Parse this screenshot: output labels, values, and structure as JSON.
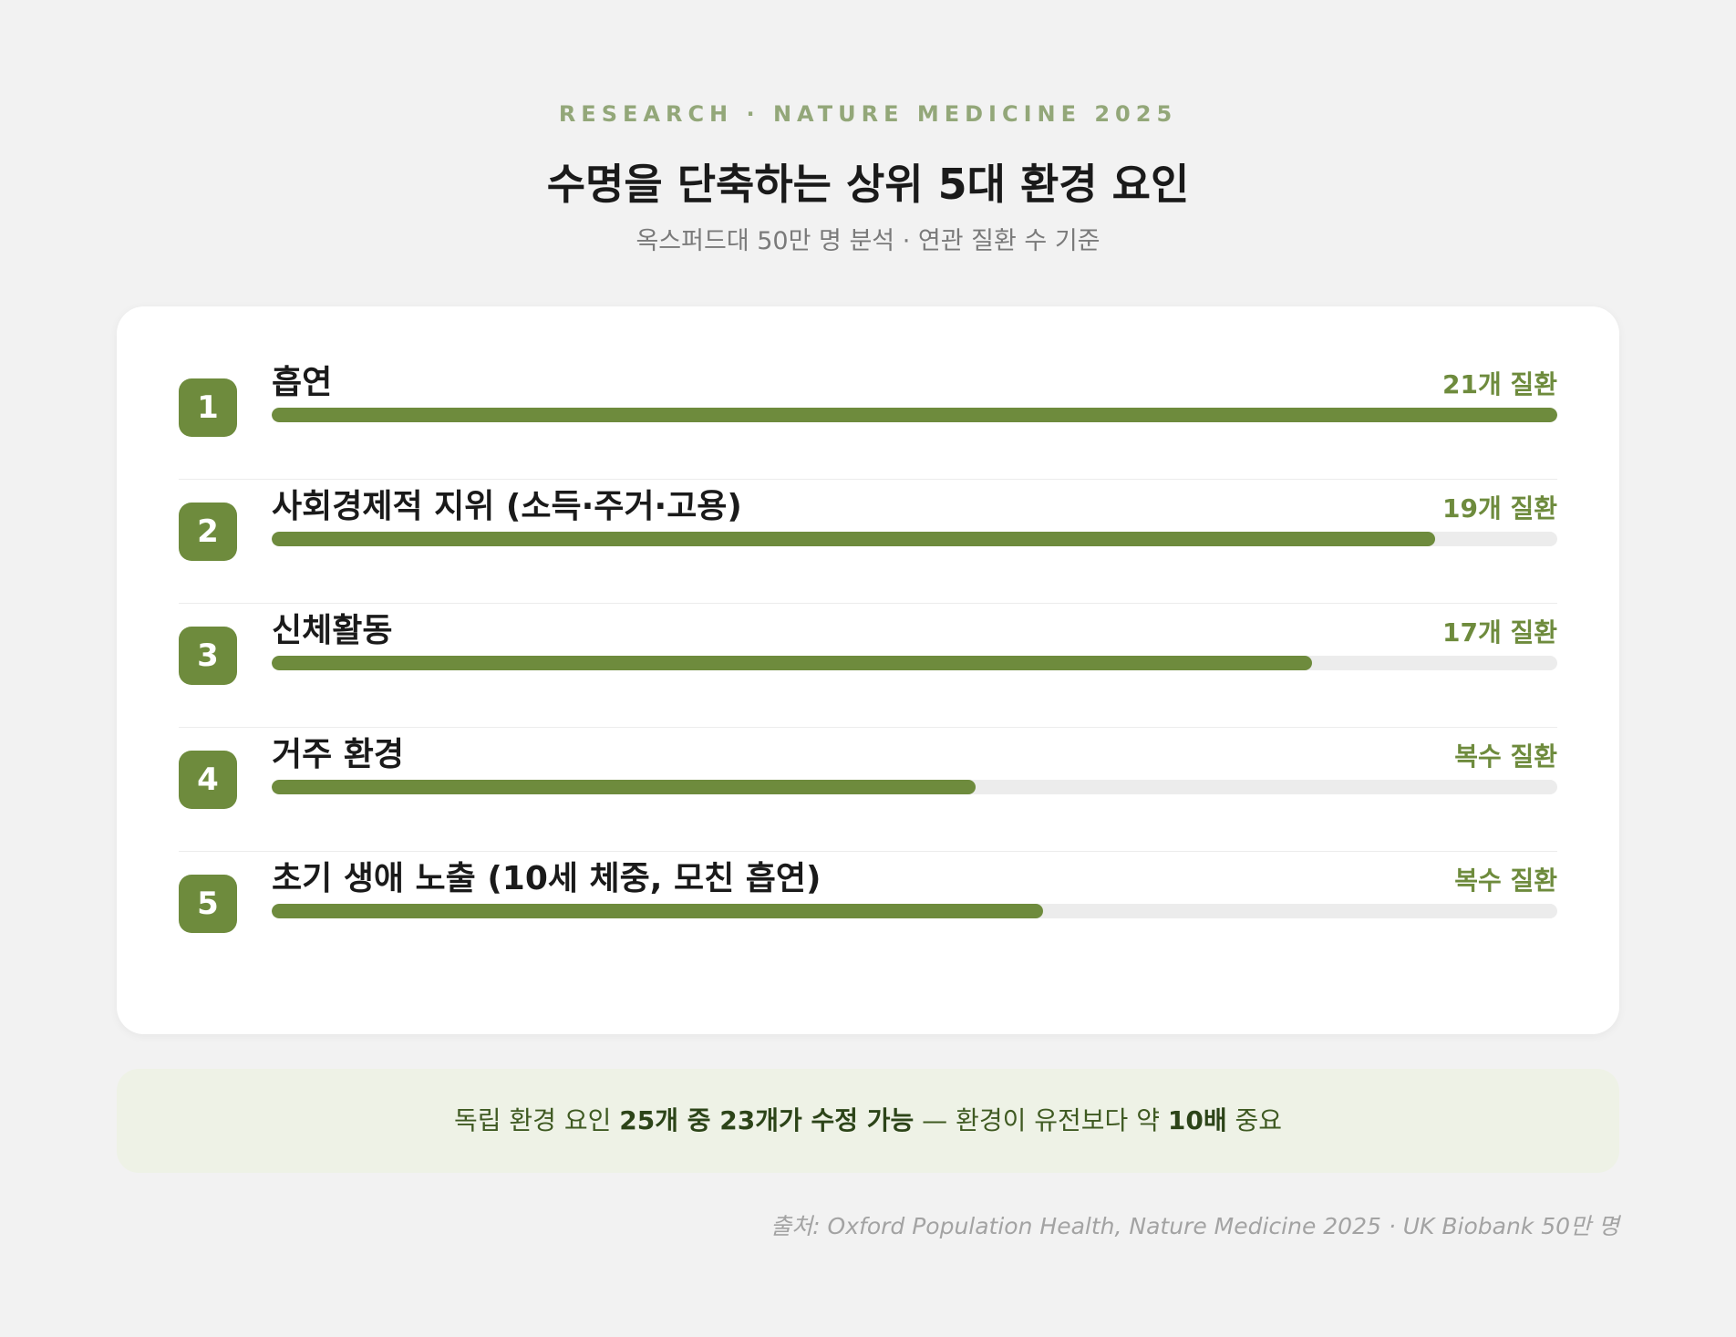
{
  "header": {
    "eyebrow": "RESEARCH · NATURE MEDICINE 2025",
    "title": "수명을 단축하는 상위 5대 환경 요인",
    "subtitle": "옥스퍼드대 50만 명 분석 · 연관 질환 수 기준"
  },
  "chart_data": {
    "type": "bar",
    "title": "수명을 단축하는 상위 5대 환경 요인",
    "subtitle": "옥스퍼드대 50만 명 분석 · 연관 질환 수 기준",
    "value_unit": "연관 질환 수",
    "categories": [
      "흡연",
      "사회경제적 지위 (소득·주거·고용)",
      "신체활동",
      "거주 환경",
      "초기 생애 노출 (10세 체중, 모친 흡연)"
    ],
    "ranks": [
      "1",
      "2",
      "3",
      "4",
      "5"
    ],
    "value_labels": [
      "21개 질환",
      "19개 질환",
      "17개 질환",
      "복수 질환",
      "복수 질환"
    ],
    "values": [
      21,
      19,
      17,
      11.5,
      12.6
    ],
    "xlim": [
      0,
      21
    ],
    "orientation": "horizontal",
    "accent_color": "#6e8b3d",
    "track_color": "#ececec"
  },
  "callout": {
    "text_1": "독립 환경 요인 ",
    "bold_1": "25개 중 23개가 수정 가능",
    "text_2": " — 환경이 유전보다 약 ",
    "bold_2": "10배",
    "text_3": " 중요"
  },
  "source": "출처: Oxford Population Health, Nature Medicine 2025 · UK Biobank 50만 명"
}
